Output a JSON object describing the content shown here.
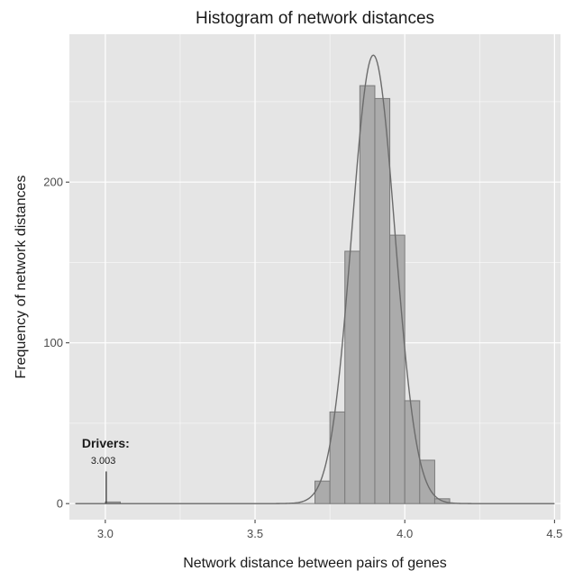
{
  "chart_data": {
    "type": "bar",
    "title": "Histogram of network distances",
    "xlabel": "Network distance between pairs of genes",
    "ylabel": "Frequency of network distances",
    "xlim": [
      2.88,
      4.52
    ],
    "ylim": [
      -10,
      292
    ],
    "x_ticks": [
      3.0,
      3.5,
      4.0,
      4.5
    ],
    "x_tick_labels": [
      "3.0",
      "3.5",
      "4.0",
      "4.5"
    ],
    "y_ticks": [
      0,
      100,
      200
    ],
    "y_tick_labels": [
      "0",
      "100",
      "200"
    ],
    "grid": true,
    "bins": [
      {
        "x0": 3.0,
        "x1": 3.05,
        "count": 1
      },
      {
        "x0": 3.7,
        "x1": 3.75,
        "count": 14
      },
      {
        "x0": 3.75,
        "x1": 3.8,
        "count": 57
      },
      {
        "x0": 3.8,
        "x1": 3.85,
        "count": 157
      },
      {
        "x0": 3.85,
        "x1": 3.9,
        "count": 260
      },
      {
        "x0": 3.9,
        "x1": 3.95,
        "count": 252
      },
      {
        "x0": 3.95,
        "x1": 4.0,
        "count": 167
      },
      {
        "x0": 4.0,
        "x1": 4.05,
        "count": 64
      },
      {
        "x0": 4.05,
        "x1": 4.1,
        "count": 27
      },
      {
        "x0": 4.1,
        "x1": 4.15,
        "count": 3
      }
    ],
    "density_curve": {
      "x_range": [
        2.9,
        4.5
      ],
      "peak_x": 3.895,
      "peak_y": 279,
      "sd": 0.072
    },
    "annotation": {
      "label": "Drivers:",
      "value": "3.003",
      "x": 3.003,
      "line_height": 20
    },
    "colors": {
      "panel": "#e5e5e5",
      "grid": "#ffffff",
      "bar_fill": "#ababab",
      "bar_stroke": "#7a7a7a",
      "curve": "#6b6b6b",
      "text": "#1a1a1a",
      "tick_text": "#4d4d4d"
    }
  }
}
